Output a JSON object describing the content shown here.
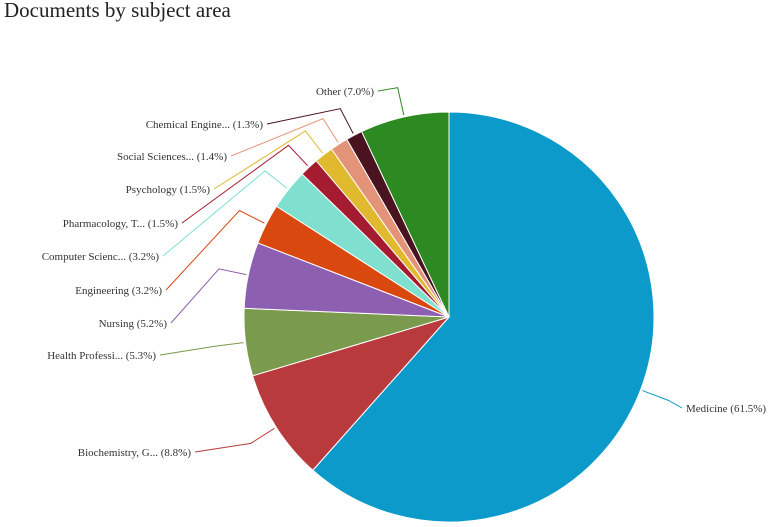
{
  "chart_data": {
    "type": "pie",
    "title": "Documents by subject area",
    "slices": [
      {
        "label": "Medicine (61.5%)",
        "value": 61.5,
        "color": "#0b9ac9"
      },
      {
        "label": "Biochemistry, G... (8.8%)",
        "value": 8.8,
        "color": "#b93a3c"
      },
      {
        "label": "Health Professi... (5.3%)",
        "value": 5.3,
        "color": "#7a9a4e"
      },
      {
        "label": "Nursing (5.2%)",
        "value": 5.2,
        "color": "#8d5fb0"
      },
      {
        "label": "Engineering (3.2%)",
        "value": 3.2,
        "color": "#d9480f"
      },
      {
        "label": "Computer Scienc... (3.2%)",
        "value": 3.2,
        "color": "#7fe0cf"
      },
      {
        "label": "Pharmacology, T... (1.5%)",
        "value": 1.5,
        "color": "#a51c30"
      },
      {
        "label": "Psychology (1.5%)",
        "value": 1.5,
        "color": "#e0b92f"
      },
      {
        "label": "Social Sciences... (1.4%)",
        "value": 1.4,
        "color": "#e39478"
      },
      {
        "label": "Chemical Engine... (1.3%)",
        "value": 1.3,
        "color": "#4a1320"
      },
      {
        "label": "Other (7.0%)",
        "value": 7.0,
        "color": "#2d8a22"
      }
    ]
  }
}
